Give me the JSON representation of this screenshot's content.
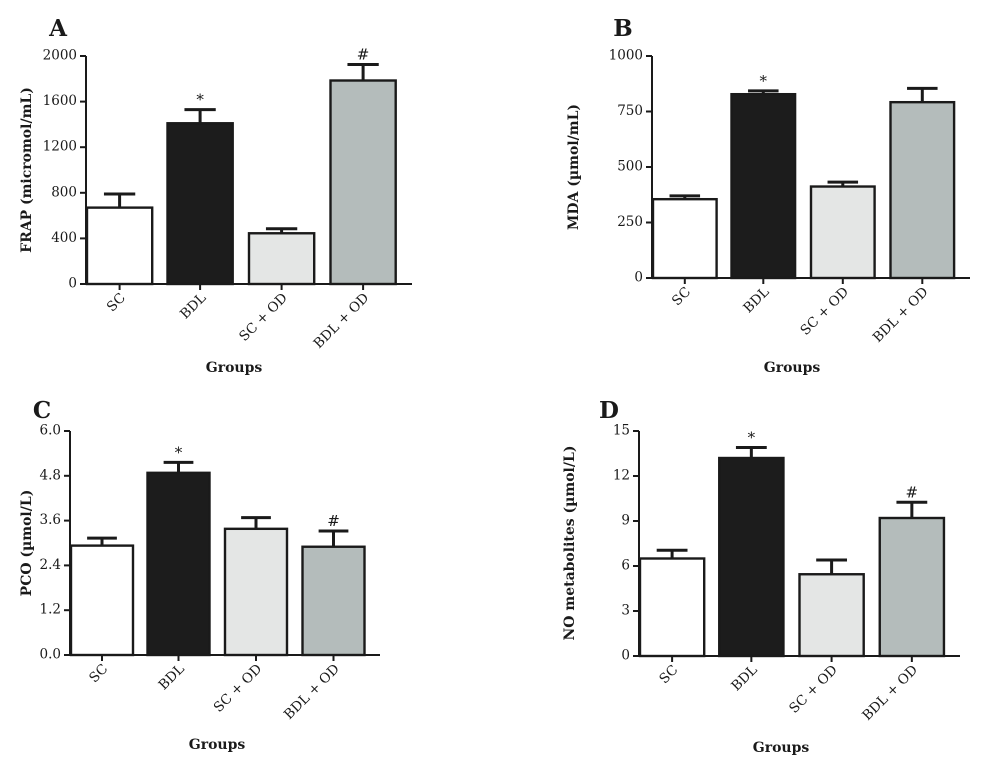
{
  "chart_data": [
    {
      "panel": "A",
      "type": "bar",
      "categories": [
        "SC",
        "BDL",
        "SC + OD",
        "BDL + OD"
      ],
      "values": [
        670,
        1410,
        445,
        1785
      ],
      "errors": [
        120,
        120,
        40,
        140
      ],
      "annotations": [
        "",
        "*",
        "",
        "#"
      ],
      "colors": [
        "#ffffff",
        "#1c1c1c",
        "#e4e6e5",
        "#b4bcbb"
      ],
      "xlabel": "Groups",
      "ylabel": "FRAP (micromol/mL)",
      "ylim": [
        0,
        2000
      ],
      "yticks": [
        "0",
        "400",
        "800",
        "1200",
        "1600",
        "2000"
      ],
      "ytick_values": [
        0,
        400,
        800,
        1200,
        1600,
        2000
      ],
      "grid": false,
      "legend": "none"
    },
    {
      "panel": "B",
      "type": "bar",
      "categories": [
        "SC",
        "BDL",
        "SC + OD",
        "BDL + OD"
      ],
      "values": [
        355,
        828,
        412,
        792
      ],
      "errors": [
        15,
        15,
        20,
        62
      ],
      "annotations": [
        "",
        "*",
        "",
        ""
      ],
      "colors": [
        "#ffffff",
        "#1c1c1c",
        "#e4e6e5",
        "#b4bcbb"
      ],
      "xlabel": "Groups",
      "ylabel": "MDA (µmol/mL)",
      "ylim": [
        0,
        1000
      ],
      "yticks": [
        "0",
        "250",
        "500",
        "750",
        "1000"
      ],
      "ytick_values": [
        0,
        250,
        500,
        750,
        1000
      ],
      "grid": false,
      "legend": "none"
    },
    {
      "panel": "C",
      "type": "bar",
      "categories": [
        "SC",
        "BDL",
        "SC + OD",
        "BDL + OD"
      ],
      "values": [
        2.93,
        4.88,
        3.38,
        2.9
      ],
      "errors": [
        0.2,
        0.28,
        0.3,
        0.42
      ],
      "annotations": [
        "",
        "*",
        "",
        "#"
      ],
      "colors": [
        "#ffffff",
        "#1c1c1c",
        "#e4e6e5",
        "#b4bcbb"
      ],
      "xlabel": "Groups",
      "ylabel": "PCO (µmol/L)",
      "ylim": [
        0,
        6
      ],
      "yticks": [
        "0.0",
        "1.2",
        "2.4",
        "3.6",
        "4.8",
        "6.0"
      ],
      "ytick_values": [
        0,
        1.2,
        2.4,
        3.6,
        4.8,
        6
      ],
      "grid": false,
      "legend": "none"
    },
    {
      "panel": "D",
      "type": "bar",
      "categories": [
        "SC",
        "BDL",
        "SC + OD",
        "BDL + OD"
      ],
      "values": [
        6.5,
        13.2,
        5.45,
        9.2
      ],
      "errors": [
        0.55,
        0.7,
        0.95,
        1.05
      ],
      "annotations": [
        "",
        "*",
        "",
        "#"
      ],
      "colors": [
        "#ffffff",
        "#1c1c1c",
        "#e4e6e5",
        "#b4bcbb"
      ],
      "xlabel": "Groups",
      "ylabel": "NO metabolites (µmol/L)",
      "ylim": [
        0,
        15
      ],
      "yticks": [
        "0",
        "3",
        "6",
        "9",
        "12",
        "15"
      ],
      "ytick_values": [
        0,
        3,
        6,
        9,
        12,
        15
      ],
      "grid": false,
      "legend": "none"
    }
  ]
}
